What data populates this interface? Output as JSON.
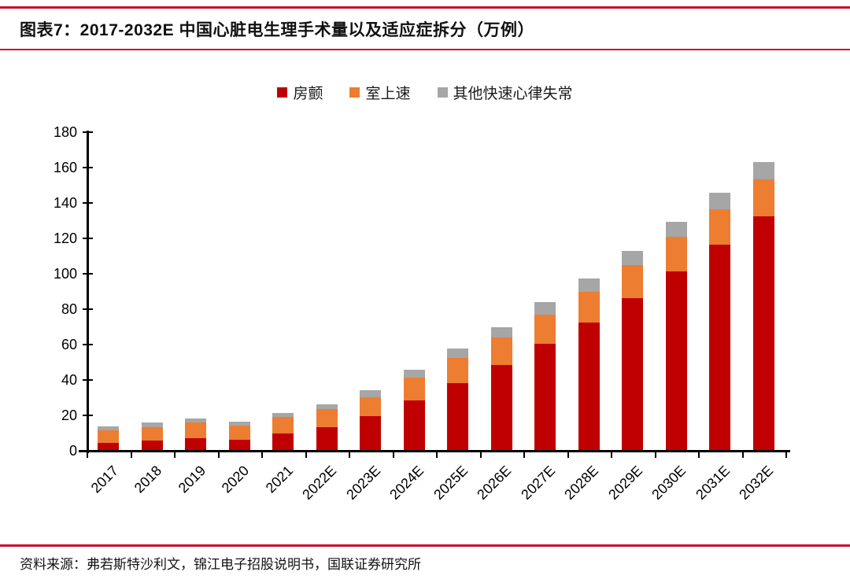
{
  "title": "图表7：2017-2032E 中国心脏电生理手术量以及适应症拆分（万例）",
  "footer": "资料来源：弗若斯特沙利文，锦江电子招股说明书，国联证券研究所",
  "accent_color": "#C8102E",
  "chart_data": {
    "type": "bar",
    "stacked": true,
    "title": "2017-2032E 中国心脏电生理手术量以及适应症拆分（万例）",
    "xlabel": "",
    "ylabel": "",
    "ylim": [
      0,
      180
    ],
    "y_ticks": [
      0,
      20,
      40,
      60,
      80,
      100,
      120,
      140,
      160,
      180
    ],
    "grid": false,
    "legend_position": "top-center",
    "categories": [
      "2017",
      "2018",
      "2019",
      "2020",
      "2021",
      "2022E",
      "2023E",
      "2024E",
      "2025E",
      "2026E",
      "2027E",
      "2028E",
      "2029E",
      "2030E",
      "2031E",
      "2032E"
    ],
    "series": [
      {
        "name": "房颤",
        "color": "#C00000",
        "values": [
          4,
          5.5,
          6.5,
          6,
          9.5,
          13,
          19,
          28,
          38,
          48,
          60,
          72,
          86,
          101,
          116,
          132
        ]
      },
      {
        "name": "室上速",
        "color": "#ED7D31",
        "values": [
          7,
          7.5,
          9,
          8,
          9,
          10,
          11,
          13,
          14,
          15.5,
          16.5,
          17.5,
          18.5,
          19.5,
          20,
          21
        ]
      },
      {
        "name": "其他快速心律失常",
        "color": "#A6A6A6",
        "values": [
          2.5,
          2.5,
          2.5,
          2,
          2.5,
          3,
          4,
          4.5,
          5.5,
          6,
          7,
          7.5,
          8,
          8.5,
          9.5,
          9.5
        ]
      }
    ],
    "totals": [
      13.5,
      15.5,
      18,
      16,
      21,
      26,
      34,
      45.5,
      57.5,
      69.5,
      83.5,
      97,
      112.5,
      129,
      145.5,
      162.5
    ]
  }
}
